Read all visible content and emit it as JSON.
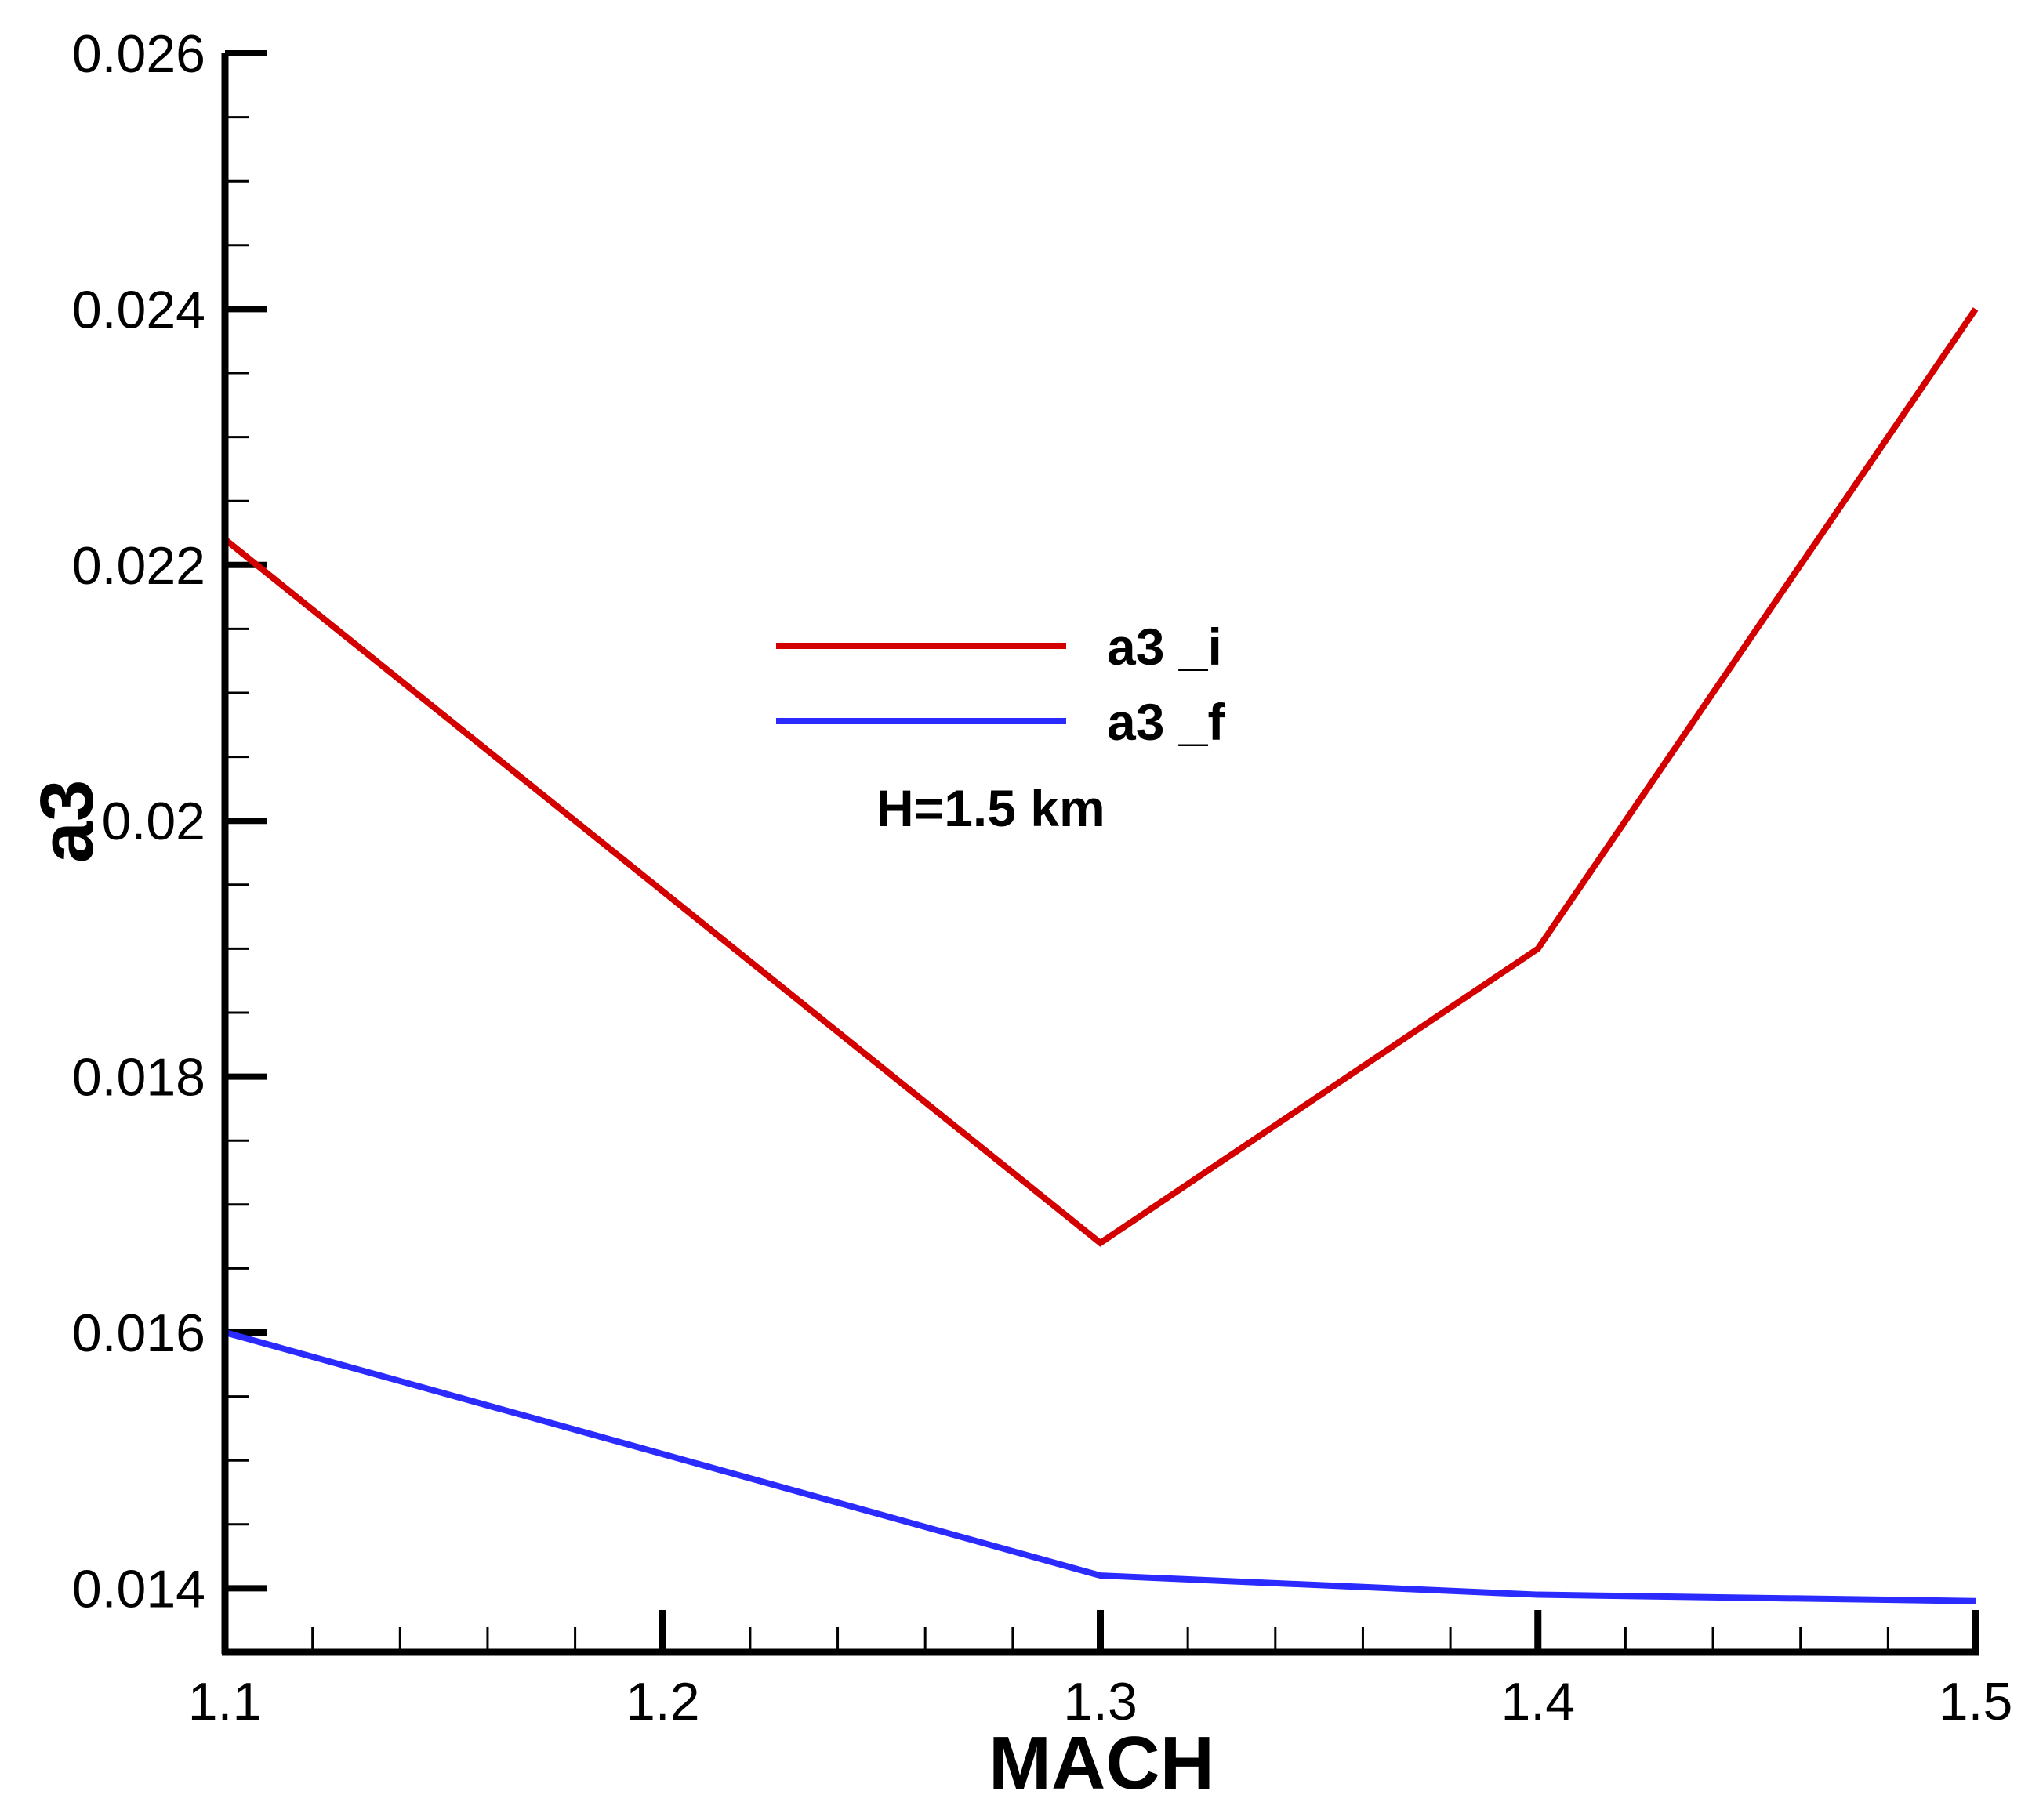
{
  "chart_data": {
    "type": "line",
    "title": "",
    "xlabel": "MACH",
    "ylabel": "a3",
    "xlim": [
      1.1,
      1.5
    ],
    "ylim": [
      0.0135,
      0.026
    ],
    "x_ticks": [
      "1.1",
      "1.2",
      "1.3",
      "1.4",
      "1.5"
    ],
    "y_ticks": [
      "0.014",
      "0.016",
      "0.018",
      "0.02",
      "0.022",
      "0.024",
      "0.026"
    ],
    "x": [
      1.1,
      1.3,
      1.4,
      1.5
    ],
    "series": [
      {
        "name": "a3 _i",
        "color": "#d40000",
        "values": [
          0.0222,
          0.0167,
          0.019,
          0.024
        ]
      },
      {
        "name": "a3 _f",
        "color": "#2b2bff",
        "values": [
          0.016,
          0.0141,
          0.01395,
          0.0139
        ]
      }
    ],
    "legend_position": "center",
    "annotation": "H=1.5 km",
    "grid": false
  }
}
